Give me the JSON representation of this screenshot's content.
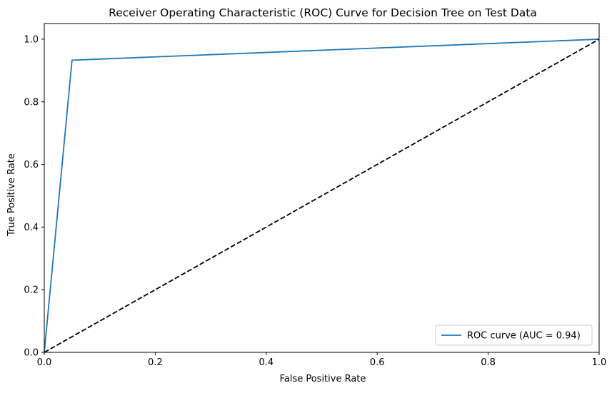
{
  "chart_data": {
    "type": "line",
    "title": "Receiver Operating Characteristic (ROC) Curve for Decision Tree on Test Data",
    "xlabel": "False Positive Rate",
    "ylabel": "True Positive Rate",
    "xlim": [
      0.0,
      1.0
    ],
    "ylim": [
      0.0,
      1.05
    ],
    "xticks": [
      "0.0",
      "0.2",
      "0.4",
      "0.6",
      "0.8",
      "1.0"
    ],
    "yticks": [
      "0.0",
      "0.2",
      "0.4",
      "0.6",
      "0.8",
      "1.0"
    ],
    "grid": false,
    "legend_position": "lower-right",
    "series": [
      {
        "name": "ROC curve (AUC = 0.94)",
        "color": "#1f77b4",
        "style": "solid",
        "x": [
          0.0,
          0.05,
          1.0
        ],
        "y": [
          0.0,
          0.933,
          1.0
        ]
      },
      {
        "color": "#000000",
        "style": "dashed",
        "x": [
          0.0,
          1.0
        ],
        "y": [
          0.0,
          1.0
        ]
      }
    ]
  }
}
